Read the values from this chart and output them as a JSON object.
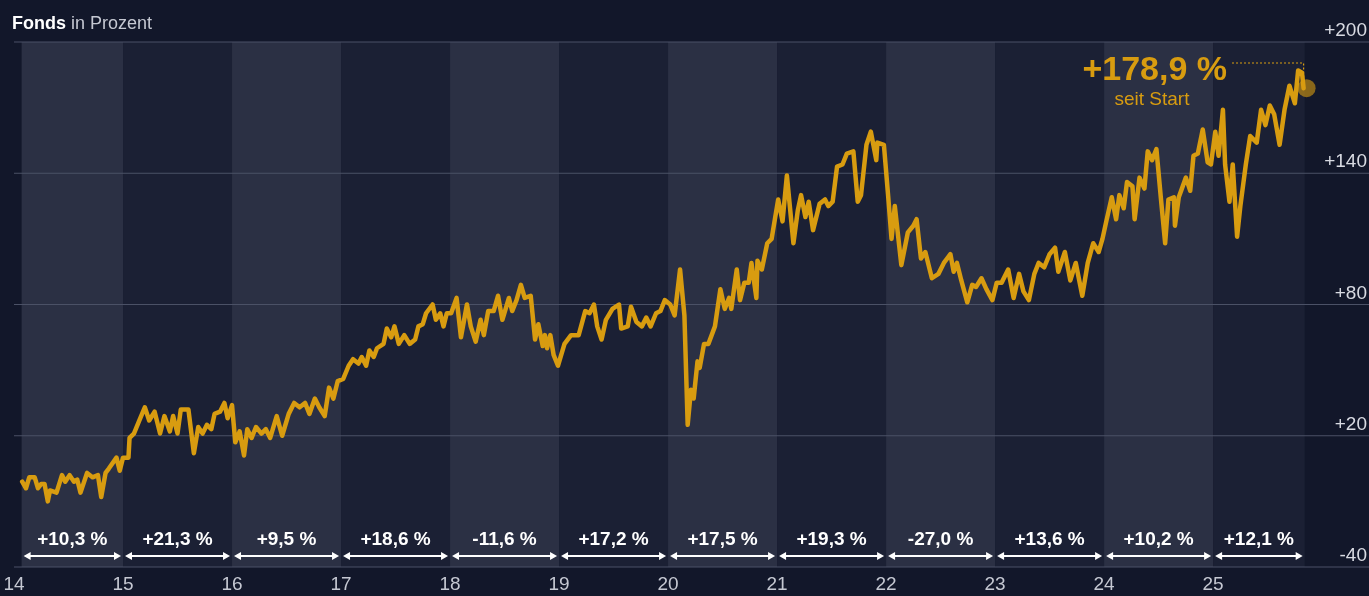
{
  "chart_data": {
    "type": "line",
    "title": "Fonds in Prozent",
    "xlim": [
      2014,
      2026.43
    ],
    "ylim": [
      -40,
      200
    ],
    "xticks": [
      {
        "value": 2014,
        "label": "14"
      },
      {
        "value": 2015,
        "label": "15"
      },
      {
        "value": 2016,
        "label": "16"
      },
      {
        "value": 2017,
        "label": "17"
      },
      {
        "value": 2018,
        "label": "18"
      },
      {
        "value": 2019,
        "label": "19"
      },
      {
        "value": 2020,
        "label": "20"
      },
      {
        "value": 2021,
        "label": "21"
      },
      {
        "value": 2022,
        "label": "22"
      },
      {
        "value": 2023,
        "label": "23"
      },
      {
        "value": 2024,
        "label": "24"
      },
      {
        "value": 2025,
        "label": "25"
      }
    ],
    "yticks": [
      -40,
      {
        "value": 20,
        "label": "+20"
      },
      {
        "value": 80,
        "label": "+80"
      },
      {
        "value": 140,
        "label": "+140"
      },
      {
        "value": 200,
        "label": "+200"
      }
    ],
    "grid": "y",
    "marker": "none",
    "line_style": "solid",
    "bands": [
      {
        "axis": "x",
        "from": 2014.07,
        "to": 2015,
        "label": "+10,3 %",
        "color": "#2b3044"
      },
      {
        "axis": "x",
        "from": 2015,
        "to": 2016,
        "label": "+21,3 %",
        "color": "#1b2034"
      },
      {
        "axis": "x",
        "from": 2016,
        "to": 2017,
        "label": "+9,5 %",
        "color": "#2b3044"
      },
      {
        "axis": "x",
        "from": 2017,
        "to": 2018,
        "label": "+18,6 %",
        "color": "#1b2034"
      },
      {
        "axis": "x",
        "from": 2018,
        "to": 2019,
        "label": "-11,6 %",
        "color": "#2b3044"
      },
      {
        "axis": "x",
        "from": 2019,
        "to": 2020,
        "label": "+17,2 %",
        "color": "#1b2034"
      },
      {
        "axis": "x",
        "from": 2020,
        "to": 2021,
        "label": "+17,5 %",
        "color": "#2b3044"
      },
      {
        "axis": "x",
        "from": 2021,
        "to": 2022,
        "label": "+19,3 %",
        "color": "#1b2034"
      },
      {
        "axis": "x",
        "from": 2022,
        "to": 2023,
        "label": "-27,0 %",
        "color": "#2b3044"
      },
      {
        "axis": "x",
        "from": 2023,
        "to": 2024,
        "label": "+13,6 %",
        "color": "#1b2034"
      },
      {
        "axis": "x",
        "from": 2024,
        "to": 2025,
        "label": "+10,2 %",
        "color": "#2b3044"
      },
      {
        "axis": "x",
        "from": 2025,
        "to": 2025.84,
        "label": "+12,1 %",
        "color": "#1b2034"
      }
    ],
    "annotations": [
      {
        "text": "+178,9 %",
        "x": 2025.83,
        "y": 178.9
      },
      "seit Start"
    ],
    "series": [
      {
        "color": "#d89c10",
        "x": [
          2014.075,
          2014.11,
          2014.14,
          2014.19,
          2014.22,
          2014.25,
          2014.28,
          2014.31,
          2014.33,
          2014.39,
          2014.44,
          2014.47,
          2014.51,
          2014.55,
          2014.58,
          2014.61,
          2014.67,
          2014.72,
          2014.77,
          2014.8,
          2014.84,
          2014.87,
          2014.94,
          2014.97,
          2015.0,
          2015.05,
          2015.06,
          2015.1,
          2015.15,
          2015.2,
          2015.24,
          2015.29,
          2015.34,
          2015.38,
          2015.43,
          2015.46,
          2015.5,
          2015.53,
          2015.6,
          2015.65,
          2015.69,
          2015.73,
          2015.77,
          2015.81,
          2015.84,
          2015.89,
          2015.93,
          2015.96,
          2016.0,
          2016.03,
          2016.07,
          2016.11,
          2016.14,
          2016.18,
          2016.22,
          2016.27,
          2016.31,
          2016.35,
          2016.41,
          2016.46,
          2016.52,
          2016.57,
          2016.62,
          2016.67,
          2016.71,
          2016.76,
          2016.8,
          2016.85,
          2016.89,
          2016.93,
          2016.97,
          2017.02,
          2017.07,
          2017.11,
          2017.16,
          2017.19,
          2017.23,
          2017.26,
          2017.3,
          2017.33,
          2017.39,
          2017.42,
          2017.46,
          2017.49,
          2017.53,
          2017.58,
          2017.63,
          2017.68,
          2017.71,
          2017.75,
          2017.78,
          2017.84,
          2017.87,
          2017.91,
          2017.94,
          2017.97,
          2018.01,
          2018.06,
          2018.1,
          2018.155,
          2018.19,
          2018.235,
          2018.28,
          2018.31,
          2018.35,
          2018.4,
          2018.44,
          2018.48,
          2018.54,
          2018.57,
          2018.61,
          2018.65,
          2018.685,
          2018.74,
          2018.78,
          2018.81,
          2018.85,
          2018.87,
          2018.89,
          2018.92,
          2018.95,
          2018.99,
          2019.05,
          2019.11,
          2019.18,
          2019.24,
          2019.28,
          2019.32,
          2019.35,
          2019.39,
          2019.43,
          2019.49,
          2019.55,
          2019.57,
          2019.63,
          2019.66,
          2019.71,
          2019.76,
          2019.8,
          2019.84,
          2019.89,
          2019.93,
          2019.97,
          2020.02,
          2020.06,
          2020.11,
          2020.15,
          2020.18,
          2020.21,
          2020.235,
          2020.27,
          2020.29,
          2020.33,
          2020.37,
          2020.43,
          2020.48,
          2020.52,
          2020.56,
          2020.58,
          2020.63,
          2020.66,
          2020.7,
          2020.74,
          2020.765,
          2020.81,
          2020.82,
          2020.86,
          2020.91,
          2020.95,
          2021.01,
          2021.05,
          2021.09,
          2021.15,
          2021.19,
          2021.22,
          2021.26,
          2021.29,
          2021.33,
          2021.39,
          2021.44,
          2021.47,
          2021.51,
          2021.55,
          2021.6,
          2021.64,
          2021.7,
          2021.74,
          2021.77,
          2021.82,
          2021.86,
          2021.91,
          2021.92,
          2021.98,
          2022.02,
          2022.05,
          2022.08,
          2022.14,
          2022.2,
          2022.25,
          2022.28,
          2022.32,
          2022.36,
          2022.42,
          2022.48,
          2022.53,
          2022.59,
          2022.62,
          2022.65,
          2022.69,
          2022.745,
          2022.79,
          2022.825,
          2022.875,
          2022.92,
          2022.975,
          2023.015,
          2023.06,
          2023.12,
          2023.17,
          2023.22,
          2023.26,
          2023.31,
          2023.36,
          2023.4,
          2023.45,
          2023.5,
          2023.55,
          2023.58,
          2023.64,
          2023.69,
          2023.74,
          2023.8,
          2023.85,
          2023.9,
          2023.95,
          2023.985,
          2024.02,
          2024.07,
          2024.11,
          2024.14,
          2024.18,
          2024.21,
          2024.26,
          2024.28,
          2024.325,
          2024.37,
          2024.4,
          2024.44,
          2024.48,
          2024.52,
          2024.56,
          2024.59,
          2024.64,
          2024.65,
          2024.685,
          2024.75,
          2024.79,
          2024.82,
          2024.86,
          2024.905,
          2024.95,
          2024.98,
          2025.02,
          2025.05,
          2025.09,
          2025.11,
          2025.15,
          2025.18,
          2025.22,
          2025.25,
          2025.3,
          2025.34,
          2025.4,
          2025.44,
          2025.48,
          2025.52,
          2025.56,
          2025.61,
          2025.655,
          2025.7,
          2025.75,
          2025.78,
          2025.815,
          2025.83
        ],
        "values": [
          -1,
          -4,
          1,
          1,
          -4,
          -2,
          -2,
          -10,
          -5,
          -6,
          2,
          -1,
          2,
          -1,
          0,
          -6,
          3,
          1,
          2,
          -8,
          3,
          5,
          10,
          4,
          10,
          10,
          19,
          21,
          27,
          33,
          27,
          31,
          21,
          29,
          22,
          29,
          21,
          32,
          32,
          12,
          24,
          21,
          25,
          23,
          30,
          31,
          35,
          28,
          34,
          17,
          22,
          11,
          23,
          19,
          24,
          21,
          23,
          19,
          29,
          20,
          30,
          35,
          33,
          35,
          30,
          37,
          33,
          29,
          42,
          37,
          45,
          46,
          52,
          55,
          53,
          56,
          52,
          59,
          56,
          60,
          62,
          69,
          65,
          70,
          62,
          66,
          62,
          64,
          70,
          71,
          76,
          80,
          73,
          76,
          70,
          76,
          76,
          83,
          65,
          80,
          70,
          63,
          73,
          66,
          77,
          77,
          84,
          73,
          83,
          77,
          82,
          89,
          83,
          84,
          64,
          71,
          61,
          66,
          60,
          66,
          57,
          52,
          62,
          66,
          66,
          77,
          76,
          80,
          70,
          64,
          73,
          78,
          80,
          69,
          70,
          79,
          72,
          70,
          74,
          70,
          76,
          77,
          82,
          80,
          75,
          96,
          75,
          25,
          41,
          37,
          54,
          51,
          62,
          62,
          70,
          87,
          78,
          83,
          78,
          96,
          82,
          90,
          90,
          99,
          83,
          100,
          96,
          108,
          110,
          128,
          118,
          139,
          108,
          123,
          130,
          120,
          127,
          114,
          126,
          128,
          125,
          127,
          143,
          144,
          149,
          150,
          127,
          130,
          153,
          159,
          146,
          154,
          153,
          129,
          110,
          125,
          98,
          113,
          116,
          119,
          101,
          104,
          92,
          94,
          99,
          103,
          95,
          99,
          91,
          81,
          89,
          88,
          92,
          87,
          82,
          90,
          90,
          96,
          83,
          94,
          86,
          82,
          94,
          99,
          97,
          103,
          106,
          95,
          104,
          91,
          99,
          84,
          99,
          108,
          104,
          110,
          118,
          129,
          119,
          130,
          124,
          136,
          134,
          119,
          138,
          133,
          150,
          146,
          151,
          129,
          108,
          128,
          129,
          116,
          129,
          138,
          132,
          148,
          149,
          160,
          145,
          144,
          159,
          148,
          169,
          144,
          127,
          144,
          111,
          125,
          144,
          157,
          154,
          169,
          162,
          171,
          167,
          153,
          169,
          180,
          172,
          187,
          186,
          178.9
        ]
      }
    ]
  }
}
